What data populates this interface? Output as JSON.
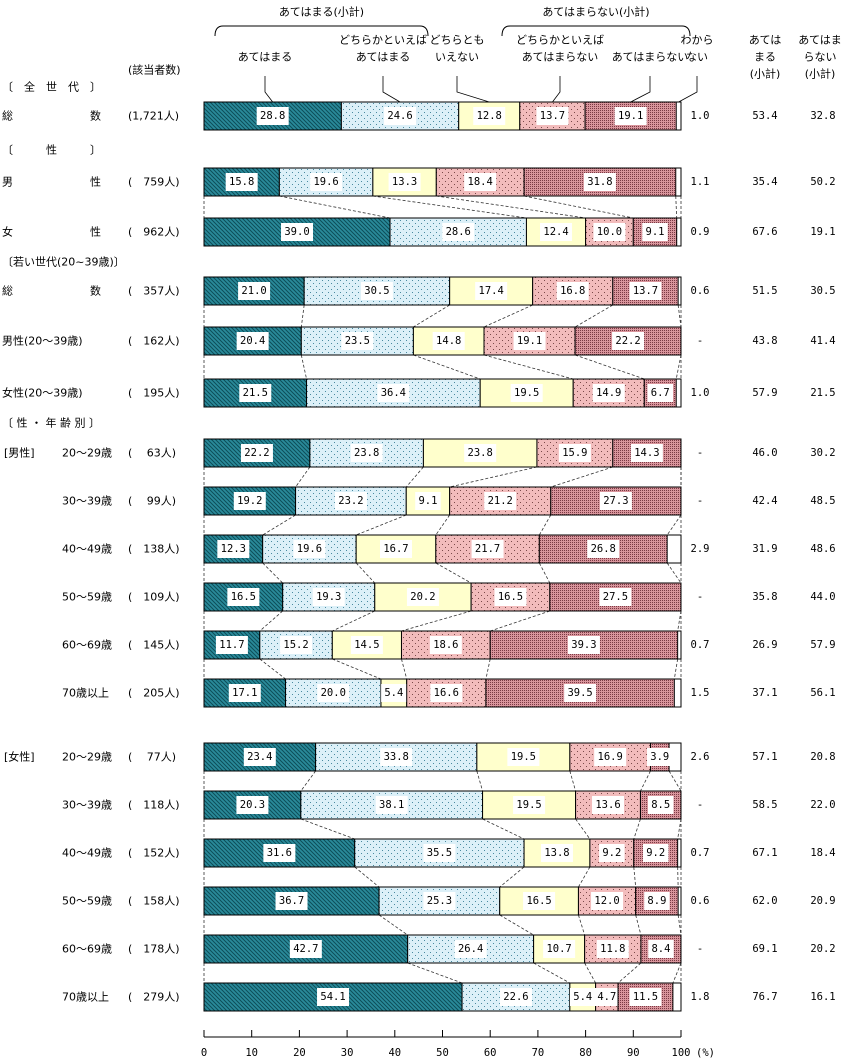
{
  "chart_data": {
    "type": "bar",
    "orientation": "horizontal-stacked-100",
    "xlim": [
      0,
      100
    ],
    "x_ticks": [
      "0",
      "10",
      "20",
      "30",
      "40",
      "50",
      "60",
      "70",
      "80",
      "90",
      "100"
    ],
    "x_unit": "(%)",
    "n_header": "(該当者数)",
    "group_headers": [
      {
        "label": "あてはまる(小計)"
      },
      {
        "label": "あてはまらない(小計)"
      }
    ],
    "series": [
      {
        "name": [
          "あてはまる"
        ],
        "color": "#2a8a9a"
      },
      {
        "name": [
          "どちらかといえば",
          "あてはまる"
        ],
        "color": "#d6ecf6"
      },
      {
        "name": [
          "どちらとも",
          "いえない"
        ],
        "color": "#ffffcc"
      },
      {
        "name": [
          "どちらかといえば",
          "あてはまらない"
        ],
        "color": "#f0b8b8"
      },
      {
        "name": [
          "あてはまらない"
        ],
        "color": "#d48c94"
      },
      {
        "name": [
          "わから",
          "ない"
        ],
        "color": "#ffffff"
      }
    ],
    "subtotal_headers": [
      [
        "あては",
        "まる",
        "(小計)"
      ],
      [
        "あてはま",
        "らない",
        "(小計)"
      ]
    ],
    "sections": [
      "〔　全　世　代　〕",
      "〔　　　性　　　〕",
      "〔若い世代(20~39歳)〕",
      "〔 性 ・ 年 齢 別 〕"
    ],
    "group_prefixes": [
      "[男性]",
      "[女性]"
    ],
    "rows": [
      {
        "label": "総　　　　　　　数",
        "n": "(1,721人)",
        "values": [
          28.8,
          24.6,
          12.8,
          13.7,
          19.1
        ],
        "unknown": "1.0",
        "sub1": "53.4",
        "sub2": "32.8"
      },
      {
        "label": "男　　　　　　　性",
        "n": "(　759人)",
        "values": [
          15.8,
          19.6,
          13.3,
          18.4,
          31.8
        ],
        "unknown": "1.1",
        "sub1": "35.4",
        "sub2": "50.2"
      },
      {
        "label": "女　　　　　　　性",
        "n": "(　962人)",
        "values": [
          39.0,
          28.6,
          12.4,
          10.0,
          9.1
        ],
        "unknown": "0.9",
        "sub1": "67.6",
        "sub2": "19.1"
      },
      {
        "label": "総　　　　　　　数",
        "n": "(　357人)",
        "values": [
          21.0,
          30.5,
          17.4,
          16.8,
          13.7
        ],
        "unknown": "0.6",
        "sub1": "51.5",
        "sub2": "30.5"
      },
      {
        "label": "男性(20～39歳)",
        "n": "(　162人)",
        "values": [
          20.4,
          23.5,
          14.8,
          19.1,
          22.2
        ],
        "unknown": "-",
        "sub1": "43.8",
        "sub2": "41.4"
      },
      {
        "label": "女性(20～39歳)",
        "n": "(　195人)",
        "values": [
          21.5,
          36.4,
          19.5,
          14.9,
          6.7
        ],
        "unknown": "1.0",
        "sub1": "57.9",
        "sub2": "21.5"
      },
      {
        "label": "20～29歳",
        "n": "(　 63人)",
        "values": [
          22.2,
          23.8,
          23.8,
          15.9,
          14.3
        ],
        "unknown": "-",
        "sub1": "46.0",
        "sub2": "30.2"
      },
      {
        "label": "30～39歳",
        "n": "(　 99人)",
        "values": [
          19.2,
          23.2,
          9.1,
          21.2,
          27.3
        ],
        "unknown": "-",
        "sub1": "42.4",
        "sub2": "48.5"
      },
      {
        "label": "40～49歳",
        "n": "(　138人)",
        "values": [
          12.3,
          19.6,
          16.7,
          21.7,
          26.8
        ],
        "unknown": "2.9",
        "sub1": "31.9",
        "sub2": "48.6"
      },
      {
        "label": "50～59歳",
        "n": "(　109人)",
        "values": [
          16.5,
          19.3,
          20.2,
          16.5,
          27.5
        ],
        "unknown": "-",
        "sub1": "35.8",
        "sub2": "44.0"
      },
      {
        "label": "60～69歳",
        "n": "(　145人)",
        "values": [
          11.7,
          15.2,
          14.5,
          18.6,
          39.3
        ],
        "unknown": "0.7",
        "sub1": "26.9",
        "sub2": "57.9"
      },
      {
        "label": "70歳以上",
        "n": "(　205人)",
        "values": [
          17.1,
          20.0,
          5.4,
          16.6,
          39.5
        ],
        "unknown": "1.5",
        "sub1": "37.1",
        "sub2": "56.1"
      },
      {
        "label": "20～29歳",
        "n": "(　 77人)",
        "values": [
          23.4,
          33.8,
          19.5,
          16.9,
          3.9
        ],
        "unknown": "2.6",
        "sub1": "57.1",
        "sub2": "20.8"
      },
      {
        "label": "30～39歳",
        "n": "(　118人)",
        "values": [
          20.3,
          38.1,
          19.5,
          13.6,
          8.5
        ],
        "unknown": "-",
        "sub1": "58.5",
        "sub2": "22.0"
      },
      {
        "label": "40～49歳",
        "n": "(　152人)",
        "values": [
          31.6,
          35.5,
          13.8,
          9.2,
          9.2
        ],
        "unknown": "0.7",
        "sub1": "67.1",
        "sub2": "18.4"
      },
      {
        "label": "50～59歳",
        "n": "(　158人)",
        "values": [
          36.7,
          25.3,
          16.5,
          12.0,
          8.9
        ],
        "unknown": "0.6",
        "sub1": "62.0",
        "sub2": "20.9"
      },
      {
        "label": "60～69歳",
        "n": "(　178人)",
        "values": [
          42.7,
          26.4,
          10.7,
          11.8,
          8.4
        ],
        "unknown": "-",
        "sub1": "69.1",
        "sub2": "20.2"
      },
      {
        "label": "70歳以上",
        "n": "(　279人)",
        "values": [
          54.1,
          22.6,
          5.4,
          4.7,
          11.5
        ],
        "unknown": "1.8",
        "sub1": "76.7",
        "sub2": "16.1"
      }
    ]
  }
}
